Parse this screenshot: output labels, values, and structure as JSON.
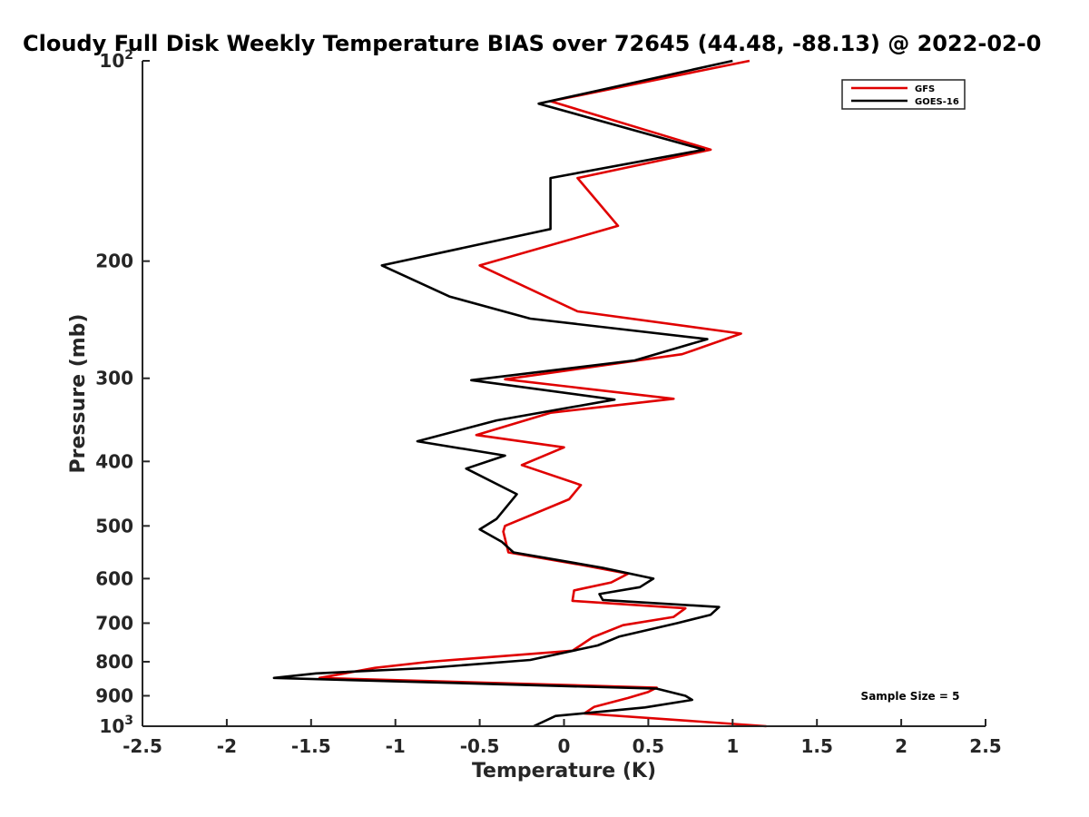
{
  "chart_data": {
    "type": "line",
    "title": "Cloudy Full Disk Weekly Temperature BIAS over 72645 (44.48, -88.13) @ 2022-02-0",
    "xlabel": "Temperature (K)",
    "ylabel": "Pressure (mb)",
    "xlim": [
      -2.5,
      2.5
    ],
    "ylim": [
      1000,
      100
    ],
    "y_scale": "log",
    "y_reversed": true,
    "grid": false,
    "legend_position": "top-right",
    "x_ticks": [
      "-2.5",
      "-2",
      "-1.5",
      "-1",
      "-0.5",
      "0",
      "0.5",
      "1",
      "1.5",
      "2",
      "2.5"
    ],
    "y_ticks": [
      {
        "value": 100,
        "base": "10",
        "exp": "2"
      },
      {
        "value": 200,
        "label": "200"
      },
      {
        "value": 300,
        "label": "300"
      },
      {
        "value": 400,
        "label": "400"
      },
      {
        "value": 500,
        "label": "500"
      },
      {
        "value": 600,
        "label": "600"
      },
      {
        "value": 700,
        "label": "700"
      },
      {
        "value": 800,
        "label": "800"
      },
      {
        "value": 900,
        "label": "900"
      },
      {
        "value": 1000,
        "base": "10",
        "exp": "3"
      }
    ],
    "annotation": "Sample Size = 5",
    "series": [
      {
        "name": "GFS",
        "color": "#e00000",
        "points": [
          [
            1.1,
            100
          ],
          [
            -0.08,
            115
          ],
          [
            0.87,
            136
          ],
          [
            0.08,
            150
          ],
          [
            0.32,
            177
          ],
          [
            -0.5,
            203
          ],
          [
            0.08,
            238
          ],
          [
            1.05,
            257
          ],
          [
            0.7,
            276
          ],
          [
            -0.35,
            301
          ],
          [
            0.65,
            322
          ],
          [
            -0.08,
            338
          ],
          [
            -0.52,
            365
          ],
          [
            0.0,
            381
          ],
          [
            -0.25,
            405
          ],
          [
            0.1,
            434
          ],
          [
            0.03,
            456
          ],
          [
            -0.35,
            500
          ],
          [
            -0.36,
            510
          ],
          [
            -0.33,
            548
          ],
          [
            0.1,
            572
          ],
          [
            0.38,
            590
          ],
          [
            0.28,
            608
          ],
          [
            0.06,
            625
          ],
          [
            0.05,
            648
          ],
          [
            0.72,
            665
          ],
          [
            0.65,
            685
          ],
          [
            0.35,
            705
          ],
          [
            0.17,
            735
          ],
          [
            0.05,
            770
          ],
          [
            -0.8,
            800
          ],
          [
            -1.12,
            817
          ],
          [
            -1.45,
            846
          ],
          [
            0.55,
            875
          ],
          [
            0.5,
            888
          ],
          [
            0.38,
            907
          ],
          [
            0.18,
            935
          ],
          [
            0.12,
            957
          ],
          [
            1.2,
            1000
          ]
        ]
      },
      {
        "name": "GOES-16",
        "color": "#000000",
        "points": [
          [
            1.0,
            100
          ],
          [
            -0.15,
            116
          ],
          [
            0.83,
            136
          ],
          [
            -0.08,
            150
          ],
          [
            -0.08,
            179
          ],
          [
            -1.08,
            203
          ],
          [
            -0.68,
            226
          ],
          [
            -0.2,
            244
          ],
          [
            0.85,
            262
          ],
          [
            0.42,
            282
          ],
          [
            -0.55,
            302
          ],
          [
            0.3,
            323
          ],
          [
            -0.4,
            347
          ],
          [
            -0.87,
            373
          ],
          [
            -0.35,
            392
          ],
          [
            -0.58,
            410
          ],
          [
            -0.28,
            448
          ],
          [
            -0.4,
            488
          ],
          [
            -0.5,
            506
          ],
          [
            -0.37,
            528
          ],
          [
            -0.3,
            548
          ],
          [
            0.23,
            578
          ],
          [
            0.53,
            600
          ],
          [
            0.45,
            618
          ],
          [
            0.21,
            633
          ],
          [
            0.23,
            646
          ],
          [
            0.92,
            662
          ],
          [
            0.87,
            680
          ],
          [
            0.67,
            700
          ],
          [
            0.33,
            733
          ],
          [
            0.2,
            756
          ],
          [
            -0.2,
            795
          ],
          [
            -0.82,
            818
          ],
          [
            -1.47,
            833
          ],
          [
            -1.72,
            846
          ],
          [
            0.55,
            878
          ],
          [
            0.72,
            900
          ],
          [
            0.76,
            913
          ],
          [
            0.48,
            937
          ],
          [
            -0.05,
            965
          ],
          [
            -0.18,
            1000
          ]
        ]
      }
    ]
  }
}
